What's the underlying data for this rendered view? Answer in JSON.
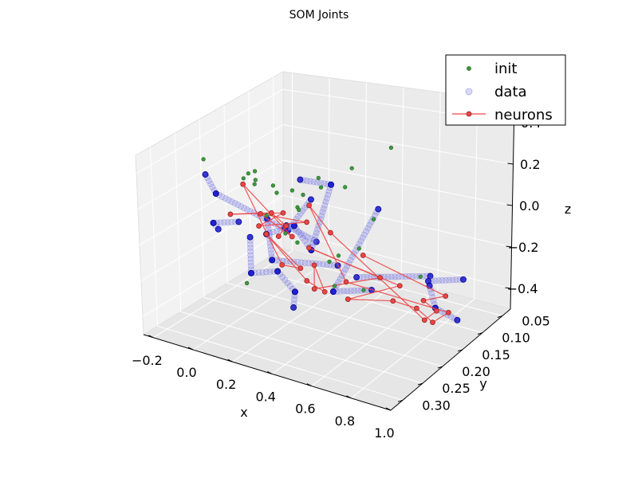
{
  "chart_data": {
    "type": "scatter",
    "projection": "3d",
    "title": "SOM Joints",
    "xlabel": "x",
    "ylabel": "y",
    "zlabel": "z",
    "xlim": [
      -0.25,
      1.0
    ],
    "ylim": [
      0.03,
      0.33
    ],
    "zlim": [
      -0.5,
      0.5
    ],
    "xticks": [
      -0.2,
      0.0,
      0.2,
      0.4,
      0.6,
      0.8,
      1.0
    ],
    "xtick_labels": [
      "−0.2",
      "0.0",
      "0.2",
      "0.4",
      "0.6",
      "0.8",
      "1.0"
    ],
    "yticks": [
      0.05,
      0.1,
      0.15,
      0.2,
      0.25,
      0.3
    ],
    "ytick_labels": [
      "0.05",
      "0.10",
      "0.15",
      "0.20",
      "0.25",
      "0.30"
    ],
    "zticks": [
      -0.4,
      -0.2,
      0.0,
      0.2,
      0.4
    ],
    "ztick_labels": [
      "−0.4",
      "−0.2",
      "0.0",
      "0.2",
      "0.4"
    ],
    "grid": true,
    "legend_position": "top-right",
    "legend": [
      {
        "label": "init",
        "marker": "dot",
        "color": "#3c9a3c"
      },
      {
        "label": "data",
        "marker": "circle",
        "color": "#8080ee"
      },
      {
        "label": "neurons",
        "marker": "line-dot",
        "color": "#ee4444"
      }
    ],
    "series": [
      {
        "name": "init",
        "color": "#3c9a3c",
        "points": [
          [
            -0.05,
            0.27,
            0.45
          ],
          [
            0.25,
            0.3,
            0.52
          ],
          [
            0.26,
            0.29,
            0.52
          ],
          [
            0.31,
            0.31,
            0.52
          ],
          [
            0.2,
            0.29,
            0.46
          ],
          [
            0.28,
            0.3,
            0.47
          ],
          [
            0.35,
            0.29,
            0.47
          ],
          [
            0.22,
            0.23,
            0.29
          ],
          [
            0.3,
            0.23,
            0.33
          ],
          [
            0.35,
            0.19,
            0.3
          ],
          [
            0.33,
            0.22,
            0.3
          ],
          [
            0.39,
            0.14,
            0.34
          ],
          [
            0.29,
            0.17,
            0.3
          ],
          [
            0.4,
            0.16,
            0.27
          ],
          [
            0.29,
            0.22,
            0.02
          ],
          [
            0.28,
            0.24,
            0.1
          ],
          [
            0.31,
            0.29,
            0.29
          ],
          [
            0.47,
            0.29,
            0.39
          ],
          [
            0.55,
            0.32,
            0.45
          ],
          [
            0.4,
            0.06,
            0.33
          ],
          [
            0.49,
            0.14,
            0.09
          ],
          [
            0.18,
            0.11,
            -0.3
          ],
          [
            0.12,
            0.26,
            -0.2
          ],
          [
            0.4,
            0.18,
            -0.08
          ],
          [
            0.36,
            0.12,
            -0.15
          ],
          [
            0.57,
            0.08,
            -0.3
          ],
          [
            0.25,
            0.13,
            -0.38
          ],
          [
            0.3,
            0.09,
            -0.45
          ]
        ]
      },
      {
        "name": "data",
        "color": "#8080ee",
        "segments": [
          {
            "from": [
              -0.05,
              0.1,
              -0.22
            ],
            "to": [
              0.08,
              0.3,
              0.35
            ]
          },
          {
            "from": [
              0.08,
              0.3,
              0.35
            ],
            "to": [
              0.03,
              0.3,
              0.44
            ]
          },
          {
            "from": [
              -0.05,
              0.1,
              -0.22
            ],
            "to": [
              0.1,
              0.11,
              0.02
            ]
          },
          {
            "from": [
              0.01,
              0.27,
              0.08
            ],
            "to": [
              0.06,
              0.3,
              0.18
            ]
          },
          {
            "from": [
              0.06,
              0.3,
              0.18
            ],
            "to": [
              0.19,
              0.3,
              0.23
            ]
          },
          {
            "from": [
              0.0,
              0.2,
              -0.08
            ],
            "to": [
              0.12,
              0.25,
              -0.16
            ]
          },
          {
            "from": [
              0.12,
              0.25,
              -0.16
            ],
            "to": [
              0.28,
              0.26,
              -0.08
            ]
          },
          {
            "from": [
              0.14,
              0.18,
              0.0
            ],
            "to": [
              0.29,
              0.18,
              -0.04
            ]
          },
          {
            "from": [
              0.19,
              0.24,
              0.15
            ],
            "to": [
              0.23,
              0.25,
              -0.05
            ]
          },
          {
            "from": [
              0.23,
              0.25,
              -0.05
            ],
            "to": [
              0.32,
              0.15,
              -0.21
            ]
          },
          {
            "from": [
              0.28,
              0.26,
              -0.08
            ],
            "to": [
              0.34,
              0.25,
              -0.19
            ]
          },
          {
            "from": [
              0.34,
              0.25,
              -0.19
            ],
            "to": [
              0.28,
              0.23,
              -0.33
            ]
          },
          {
            "from": [
              0.28,
              0.28,
              0.16
            ],
            "to": [
              0.4,
              0.27,
              0.23
            ]
          },
          {
            "from": [
              0.4,
              0.27,
              0.23
            ],
            "to": [
              0.58,
              0.31,
              0.22
            ]
          },
          {
            "from": [
              0.4,
              0.27,
              0.23
            ],
            "to": [
              0.45,
              0.31,
              0.3
            ]
          },
          {
            "from": [
              0.49,
              0.29,
              0.55
            ],
            "to": [
              0.5,
              0.23,
              0.43
            ]
          },
          {
            "from": [
              0.5,
              0.23,
              0.43
            ],
            "to": [
              0.58,
              0.31,
              0.22
            ]
          },
          {
            "from": [
              0.32,
              0.06,
              -0.04
            ],
            "to": [
              0.61,
              0.28,
              -0.05
            ]
          },
          {
            "from": [
              0.61,
              0.28,
              -0.05
            ],
            "to": [
              0.66,
              0.22,
              -0.12
            ]
          },
          {
            "from": [
              0.61,
              0.23,
              -0.05
            ],
            "to": [
              0.62,
              0.08,
              -0.28
            ]
          },
          {
            "from": [
              0.56,
              0.06,
              -0.36
            ],
            "to": [
              0.74,
              0.06,
              -0.29
            ]
          },
          {
            "from": [
              0.59,
              0.06,
              -0.5
            ],
            "to": [
              0.7,
              0.06,
              -0.53
            ]
          },
          {
            "from": [
              0.59,
              0.06,
              -0.5
            ],
            "to": [
              0.59,
              0.07,
              -0.36
            ]
          }
        ]
      },
      {
        "name": "neurons",
        "color": "#ee4444",
        "points": [
          [
            -0.05,
            0.12,
            -0.22
          ],
          [
            0.04,
            0.14,
            -0.1
          ],
          [
            0.09,
            0.19,
            0.07
          ],
          [
            0.1,
            0.28,
            0.21
          ],
          [
            0.15,
            0.19,
            0.09
          ],
          [
            0.17,
            0.25,
            0.12
          ],
          [
            0.22,
            0.17,
            0.03
          ],
          [
            0.23,
            0.27,
            0.24
          ],
          [
            0.24,
            0.21,
            0.02
          ],
          [
            0.22,
            0.3,
            0.45
          ],
          [
            0.28,
            0.25,
            -0.06
          ],
          [
            0.3,
            0.22,
            -0.12
          ],
          [
            0.28,
            0.28,
            0.16
          ],
          [
            0.33,
            0.22,
            -0.18
          ],
          [
            0.37,
            0.2,
            -0.26
          ],
          [
            0.42,
            0.24,
            -0.03
          ],
          [
            0.44,
            0.25,
            -0.14
          ],
          [
            0.51,
            0.14,
            -0.23
          ],
          [
            0.52,
            0.29,
            0.18
          ],
          [
            0.56,
            0.12,
            -0.29
          ],
          [
            0.61,
            0.25,
            -0.14
          ],
          [
            0.62,
            0.16,
            -0.29
          ],
          [
            0.69,
            0.14,
            -0.34
          ],
          [
            0.72,
            0.12,
            -0.44
          ],
          [
            0.73,
            0.09,
            -0.43
          ],
          [
            0.58,
            0.24,
            -0.07
          ],
          [
            0.53,
            0.29,
            0.42
          ],
          [
            0.56,
            0.26,
            0.23
          ],
          [
            0.63,
            0.1,
            -0.49
          ],
          [
            0.62,
            0.07,
            -0.49
          ],
          [
            0.58,
            0.08,
            -0.43
          ],
          [
            0.67,
            0.07,
            -0.39
          ],
          [
            0.33,
            0.1,
            -0.23
          ]
        ]
      }
    ]
  }
}
